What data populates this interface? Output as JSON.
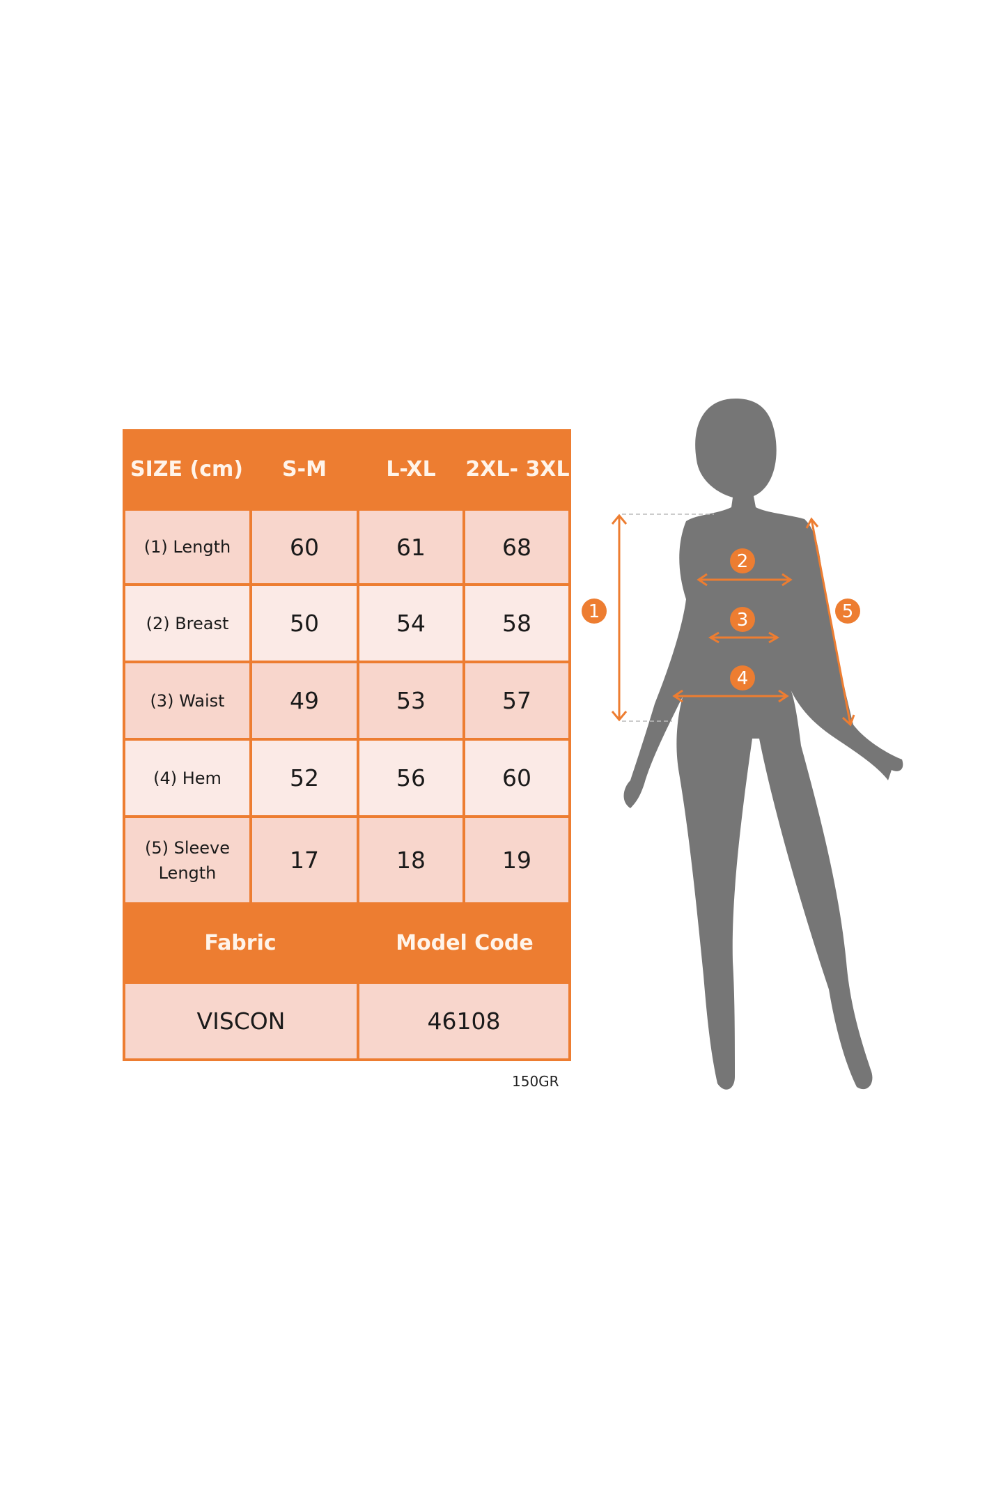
{
  "colors": {
    "accent": "#ED7D31",
    "silhouette": "#767676",
    "row_dark": "#F8D6CC",
    "row_light": "#FBEAE6"
  },
  "table": {
    "header": [
      "SIZE (cm)",
      "S-M",
      "L-XL",
      "2XL- 3XL"
    ],
    "rows": [
      {
        "label": "(1) Length",
        "values": [
          "60",
          "61",
          "68"
        ]
      },
      {
        "label": "(2) Breast",
        "values": [
          "50",
          "54",
          "58"
        ]
      },
      {
        "label": "(3) Waist",
        "values": [
          "49",
          "53",
          "57"
        ]
      },
      {
        "label": "(4) Hem",
        "values": [
          "52",
          "56",
          "60"
        ]
      },
      {
        "label": "(5) Sleeve Length",
        "values": [
          "17",
          "18",
          "19"
        ]
      }
    ],
    "footer_headers": [
      "Fabric",
      "Model Code"
    ],
    "footer_values": [
      "VISCON",
      "46108"
    ]
  },
  "weight_note": "150GR",
  "figure": {
    "markers": [
      "1",
      "2",
      "3",
      "4",
      "5"
    ]
  }
}
